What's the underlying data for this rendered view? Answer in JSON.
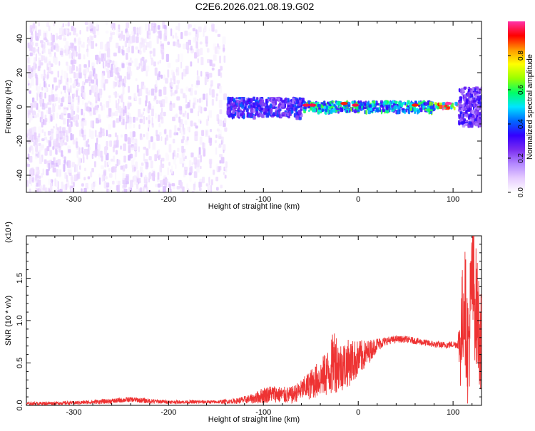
{
  "title": "C2E6.2026.021.08.19.G02",
  "colors": {
    "snr_line": "#ee3333",
    "noise": "#7a2cf0",
    "background": "#ffffff",
    "axis": "#000000"
  },
  "chart_data": [
    {
      "type": "heatmap",
      "xlabel": "Height of straight line (km)",
      "ylabel": "Frequency (Hz)",
      "xlim": [
        -350,
        130
      ],
      "ylim": [
        -50,
        50
      ],
      "xticks": [
        -300,
        -200,
        -100,
        0,
        100
      ],
      "yticks": [
        -40,
        -20,
        0,
        20,
        40
      ],
      "colorbar": {
        "label": "Normalized spectral amplitude",
        "range": [
          0.0,
          1.0
        ],
        "ticks": [
          0.0,
          0.2,
          0.4,
          0.6,
          0.8
        ],
        "palette": [
          "#ffffff",
          "#e6ccff",
          "#b388ff",
          "#7a2cf0",
          "#3300ff",
          "#0066ff",
          "#00e5ff",
          "#00ff66",
          "#99ff00",
          "#ffff00",
          "#ff9900",
          "#ff0000",
          "#ff33aa"
        ]
      },
      "regions": [
        {
          "x_range": [
            -350,
            -140
          ],
          "freq_range": [
            -50,
            50
          ],
          "amplitude": 0.05
        },
        {
          "x_range": [
            -140,
            -60
          ],
          "freq_range": [
            -5,
            6
          ],
          "amplitude": 0.35
        },
        {
          "x_range": [
            -60,
            80
          ],
          "freq_range": [
            -2,
            4
          ],
          "amplitude": 0.55
        },
        {
          "x_range": [
            80,
            105
          ],
          "freq_range": [
            0,
            3
          ],
          "amplitude": 0.9
        },
        {
          "x_range": [
            105,
            130
          ],
          "freq_range": [
            -10,
            12
          ],
          "amplitude": 0.3
        }
      ],
      "peaks": [
        {
          "x": -55,
          "freq": 1,
          "amplitude": 0.95
        },
        {
          "x": -48,
          "freq": 1,
          "amplitude": 0.95
        },
        {
          "x": -15,
          "freq": 2,
          "amplitude": 0.9
        },
        {
          "x": -3,
          "freq": 1,
          "amplitude": 0.95
        },
        {
          "x": 60,
          "freq": 1,
          "amplitude": 0.9
        },
        {
          "x": 95,
          "freq": 2,
          "amplitude": 1.0
        }
      ]
    },
    {
      "type": "line",
      "xlabel": "Height of straight line (km)",
      "ylabel": "SNR (10 * v/v)",
      "y_multiplier": "(x10⁴)",
      "xlim": [
        -350,
        130
      ],
      "ylim": [
        0,
        2.0
      ],
      "xticks": [
        -300,
        -200,
        -100,
        0,
        100
      ],
      "yticks": [
        0.0,
        0.5,
        1.0,
        1.5
      ],
      "ytick_labels": [
        "0.0",
        "0.5",
        "1.0",
        "1.5"
      ],
      "series": [
        {
          "color": "#ee3333",
          "x": [
            -350,
            -300,
            -260,
            -240,
            -220,
            -200,
            -150,
            -130,
            -110,
            -100,
            -90,
            -80,
            -70,
            -60,
            -50,
            -40,
            -30,
            -25,
            -20,
            -10,
            0,
            10,
            20,
            30,
            40,
            50,
            60,
            70,
            80,
            90,
            100,
            105,
            108,
            112,
            116,
            120,
            125,
            130
          ],
          "values": [
            0.02,
            0.03,
            0.05,
            0.07,
            0.05,
            0.04,
            0.04,
            0.05,
            0.08,
            0.12,
            0.14,
            0.12,
            0.12,
            0.18,
            0.25,
            0.32,
            0.4,
            0.55,
            0.45,
            0.5,
            0.55,
            0.62,
            0.72,
            0.76,
            0.78,
            0.78,
            0.76,
            0.74,
            0.72,
            0.71,
            0.72,
            0.72,
            0.75,
            1.3,
            0.6,
            1.5,
            1.1,
            0.7
          ],
          "noise": [
            0.02,
            0.02,
            0.03,
            0.03,
            0.03,
            0.02,
            0.02,
            0.03,
            0.06,
            0.1,
            0.1,
            0.1,
            0.1,
            0.12,
            0.18,
            0.22,
            0.3,
            0.4,
            0.3,
            0.28,
            0.22,
            0.15,
            0.08,
            0.05,
            0.04,
            0.04,
            0.04,
            0.04,
            0.04,
            0.04,
            0.04,
            0.05,
            0.6,
            0.7,
            0.7,
            0.8,
            0.7,
            0.6
          ]
        }
      ]
    }
  ]
}
